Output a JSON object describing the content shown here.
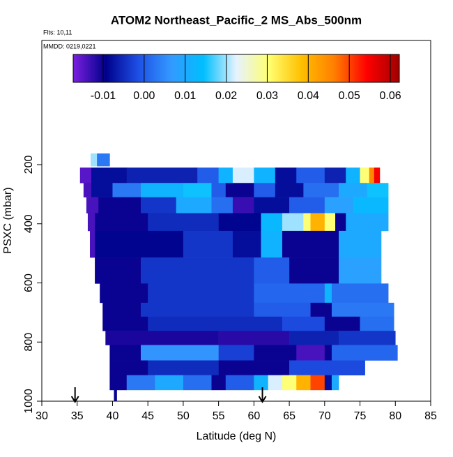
{
  "chart_data": {
    "type": "curtain",
    "title": "ATOM2 Northeast_Pacific_2 MS_Abs_500nm",
    "flights": "Flts: 10,11",
    "dates": "MMDD: 0219,0221",
    "x_label": "Latitude (deg N)",
    "y_label": "PSXC (mbar)",
    "xlim": [
      30,
      85
    ],
    "xticks": [
      30,
      35,
      40,
      45,
      50,
      55,
      60,
      65,
      70,
      75,
      80,
      85
    ],
    "ylim": [
      1000,
      -220
    ],
    "yticks": [
      200,
      400,
      600,
      800,
      1000
    ],
    "clim": [
      -0.0173,
      0.0622
    ],
    "cticks": [
      -0.01,
      {
        "value": 0,
        "label": "0.00"
      },
      0.01,
      0.02,
      0.03,
      0.04,
      0.05,
      0.06
    ],
    "colors": [
      "#7b1fe0",
      "#00008b",
      "#1e50e6",
      "#3399ff",
      "#00bfff",
      "#e6f2ff",
      "#ffff70",
      "#ffbf00",
      "#ff7f00",
      "#ff0000",
      "#a00000"
    ],
    "arrows": [
      34.7,
      61.2
    ],
    "rows": [
      {
        "p": [
          162,
          205
        ],
        "cells": [
          [
            36.9,
            37.8,
            0.02
          ],
          [
            37.8,
            39.6,
            0.003
          ]
        ]
      },
      {
        "p": [
          210,
          262
        ],
        "cells": [
          [
            35.4,
            37,
            -0.015
          ],
          [
            37,
            42,
            -0.008
          ],
          [
            42,
            52,
            -0.006
          ],
          [
            52,
            55,
            0.0
          ],
          [
            55,
            57,
            0.012
          ],
          [
            57,
            60,
            0.022
          ],
          [
            60,
            63,
            0.012
          ],
          [
            63,
            66,
            -0.008
          ],
          [
            66,
            70,
            0.0
          ],
          [
            70,
            73,
            -0.006
          ],
          [
            73,
            75,
            0.012
          ],
          [
            75,
            76.3,
            0.03
          ],
          [
            76.3,
            77,
            0.045
          ],
          [
            77,
            77.8,
            0.055
          ]
        ]
      },
      {
        "p": [
          262,
          310
        ],
        "cells": [
          [
            35.9,
            37,
            -0.014
          ],
          [
            37,
            40,
            -0.008
          ],
          [
            40,
            44,
            0.003
          ],
          [
            44,
            50,
            0.012
          ],
          [
            50,
            54,
            0.015
          ],
          [
            54,
            56,
            0.0
          ],
          [
            56,
            60,
            -0.01
          ],
          [
            60,
            63,
            0.0
          ],
          [
            63,
            67,
            -0.008
          ],
          [
            67,
            72,
            0.002
          ],
          [
            72,
            76,
            0.01
          ],
          [
            76,
            79,
            0.015
          ]
        ]
      },
      {
        "p": [
          310,
          364
        ],
        "cells": [
          [
            36.3,
            38,
            -0.014
          ],
          [
            38,
            44,
            -0.01
          ],
          [
            44,
            49,
            -0.004
          ],
          [
            49,
            54,
            0.01
          ],
          [
            54,
            57,
            0.002
          ],
          [
            57,
            60,
            -0.013
          ],
          [
            60,
            65,
            -0.008
          ],
          [
            65,
            70,
            0.0
          ],
          [
            70,
            74,
            0.008
          ],
          [
            74,
            79,
            0.013
          ]
        ]
      },
      {
        "p": [
          364,
          424
        ],
        "cells": [
          [
            36.5,
            37.5,
            -0.014
          ],
          [
            37.5,
            45,
            -0.01
          ],
          [
            45,
            55,
            -0.005
          ],
          [
            55,
            61,
            -0.009
          ],
          [
            61,
            64,
            0.013
          ],
          [
            64,
            67,
            0.02
          ],
          [
            67,
            68,
            0.03
          ],
          [
            68,
            70,
            0.04
          ],
          [
            70,
            71.5,
            0.03
          ],
          [
            71.5,
            73,
            -0.01
          ],
          [
            73,
            79,
            0.01
          ]
        ]
      },
      {
        "p": [
          424,
          514
        ],
        "cells": [
          [
            36.8,
            37.5,
            -0.014
          ],
          [
            37.5,
            50,
            -0.009
          ],
          [
            50,
            57,
            -0.004
          ],
          [
            57,
            61,
            -0.008
          ],
          [
            61,
            64,
            0.012
          ],
          [
            64,
            72,
            -0.01
          ],
          [
            72,
            78,
            0.01
          ]
        ]
      },
      {
        "p": [
          514,
          602
        ],
        "cells": [
          [
            37.5,
            44,
            -0.01
          ],
          [
            44,
            60,
            -0.004
          ],
          [
            60,
            65,
            0.0
          ],
          [
            65,
            72,
            -0.01
          ],
          [
            72,
            78,
            0.008
          ]
        ]
      },
      {
        "p": [
          602,
          667
        ],
        "cells": [
          [
            38.2,
            45,
            -0.01
          ],
          [
            45,
            60,
            -0.004
          ],
          [
            60,
            70,
            0.001
          ],
          [
            70,
            71,
            0.012
          ],
          [
            71,
            79,
            0.002
          ]
        ]
      },
      {
        "p": [
          667,
          714
        ],
        "cells": [
          [
            38.6,
            44,
            -0.01
          ],
          [
            44,
            60,
            -0.004
          ],
          [
            60,
            68,
            0.0
          ],
          [
            68,
            71,
            -0.01
          ],
          [
            71,
            79.8,
            0.003
          ]
        ]
      },
      {
        "p": [
          714,
          762
        ],
        "cells": [
          [
            38.6,
            45,
            -0.01
          ],
          [
            45,
            64,
            -0.005
          ],
          [
            64,
            70,
            -0.002
          ],
          [
            70,
            75,
            -0.01
          ],
          [
            75,
            79.8,
            0.002
          ]
        ]
      },
      {
        "p": [
          762,
          810
        ],
        "cells": [
          [
            39,
            55,
            -0.011
          ],
          [
            55,
            65,
            -0.012
          ],
          [
            65,
            72,
            -0.006
          ],
          [
            72,
            80,
            -0.004
          ]
        ]
      },
      {
        "p": [
          810,
          862
        ],
        "cells": [
          [
            39.6,
            44,
            -0.01
          ],
          [
            44,
            55,
            0.006
          ],
          [
            55,
            60,
            -0.003
          ],
          [
            60,
            66,
            -0.01
          ],
          [
            66,
            70,
            -0.014
          ],
          [
            70,
            71,
            -0.01
          ],
          [
            71,
            80.3,
            0.001
          ]
        ]
      },
      {
        "p": [
          862,
          912
        ],
        "cells": [
          [
            39.6,
            45,
            -0.01
          ],
          [
            45,
            55,
            -0.005
          ],
          [
            55,
            65,
            -0.01
          ],
          [
            65,
            75.7,
            -0.002
          ]
        ]
      },
      {
        "p": [
          912,
          962
        ],
        "cells": [
          [
            39.6,
            42,
            -0.01
          ],
          [
            42,
            46,
            0.003
          ],
          [
            46,
            50,
            0.01
          ],
          [
            50,
            54,
            0.002
          ],
          [
            54,
            56,
            -0.01
          ],
          [
            56,
            60,
            0.0
          ],
          [
            60,
            62,
            0.012
          ],
          [
            62,
            64,
            0.022
          ],
          [
            64,
            66,
            0.03
          ],
          [
            66,
            68,
            0.04
          ],
          [
            68,
            70,
            0.05
          ],
          [
            70,
            71,
            -0.008
          ],
          [
            71,
            72,
            0.01
          ]
        ]
      },
      {
        "p": [
          962,
          1000
        ],
        "cells": [
          [
            40.2,
            40.6,
            -0.01
          ]
        ]
      }
    ]
  }
}
